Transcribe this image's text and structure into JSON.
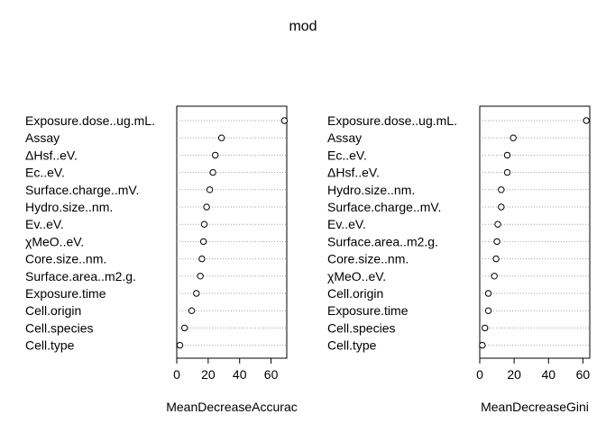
{
  "title": "mod",
  "chart_data": [
    {
      "type": "scatter",
      "style": "dotchart",
      "xlabel": "MeanDecreaseAccurac",
      "xlim": [
        0,
        70
      ],
      "xticks": [
        0,
        20,
        40,
        60
      ],
      "tick_labels": [
        "0",
        "20",
        "40",
        "60"
      ],
      "grid": "dotted rows",
      "labels": [
        "Exposure.dose..ug.mL.",
        "Assay",
        "ΔHsf..eV.",
        "Ec..eV.",
        "Surface.charge..mV.",
        "Hydro.size..nm.",
        "Ev..eV.",
        "χMeO..eV.",
        "Core.size..nm.",
        "Surface.area..m2.g.",
        "Exposure.time",
        "Cell.origin",
        "Cell.species",
        "Cell.type"
      ],
      "values": [
        68.5,
        28.5,
        24.5,
        23,
        21,
        19,
        17.5,
        17,
        16,
        15,
        12.5,
        9.5,
        5,
        2
      ]
    },
    {
      "type": "scatter",
      "style": "dotchart",
      "xlabel": "MeanDecreaseGini",
      "xlim": [
        0,
        64
      ],
      "xticks": [
        0,
        20,
        40,
        60
      ],
      "tick_labels": [
        "0",
        "20",
        "40",
        "60"
      ],
      "grid": "dotted rows",
      "labels": [
        "Exposure.dose..ug.mL.",
        "Assay",
        "Ec..eV.",
        "ΔHsf..eV.",
        "Hydro.size..nm.",
        "Surface.charge..mV.",
        "Ev..eV.",
        "Surface.area..m2.g.",
        "Core.size..nm.",
        "χMeO..eV.",
        "Cell.origin",
        "Exposure.time",
        "Cell.species",
        "Cell.type"
      ],
      "values": [
        62,
        19.5,
        16,
        16,
        12.5,
        12.5,
        10.5,
        10,
        9.5,
        8.5,
        5,
        5,
        3,
        1.5
      ]
    }
  ]
}
